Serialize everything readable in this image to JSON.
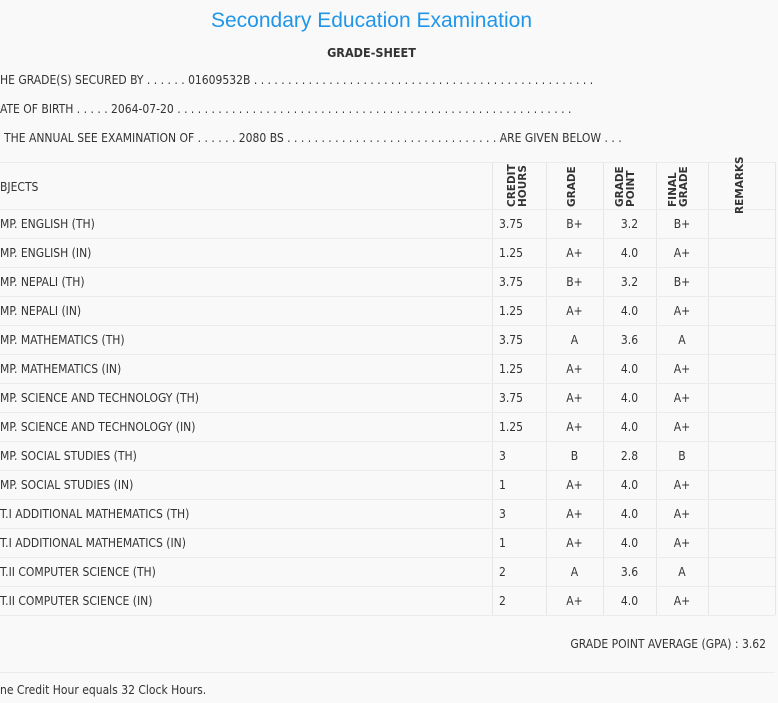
{
  "title": "Secondary Education Examination",
  "subtitle": "GRADE-SHEET",
  "info": {
    "secured_by": "HE GRADE(S) SECURED BY . . . . . . 01609532B . . . . . . . . . . . . . . . . . . . . . . . . . . . . . . . . . . . . . . . . . . . . . . . . . .",
    "dob": "ATE OF BIRTH . . . . . 2064-07-20 . . . . . . . . . . . . . . . . . . . . . . . . . . . . . . . . . . . . . . . . . . . . . . . . . . . . . . . . . .",
    "exam": "THE ANNUAL SEE EXAMINATION OF . . . . . . 2080 BS . . . . . . . . . . . . . . . . . . . . . . . . . . . . . . . ARE GIVEN BELOW . . ."
  },
  "headers": {
    "subjects": "BJECTS",
    "credit": [
      "CREDIT",
      "HOURS"
    ],
    "grade": "GRADE",
    "point": [
      "GRADE",
      "POINT"
    ],
    "final": [
      "FINAL",
      "GRADE"
    ],
    "remarks": "REMARKS"
  },
  "rows": [
    [
      "MP. ENGLISH (TH)",
      "3.75",
      "B+",
      "3.2",
      "B+"
    ],
    [
      "MP. ENGLISH (IN)",
      "1.25",
      "A+",
      "4.0",
      "A+"
    ],
    [
      "MP. NEPALI (TH)",
      "3.75",
      "B+",
      "3.2",
      "B+"
    ],
    [
      "MP. NEPALI (IN)",
      "1.25",
      "A+",
      "4.0",
      "A+"
    ],
    [
      "MP. MATHEMATICS (TH)",
      "3.75",
      "A",
      "3.6",
      "A"
    ],
    [
      "MP. MATHEMATICS (IN)",
      "1.25",
      "A+",
      "4.0",
      "A+"
    ],
    [
      "MP. SCIENCE AND TECHNOLOGY (TH)",
      "3.75",
      "A+",
      "4.0",
      "A+"
    ],
    [
      "MP. SCIENCE AND TECHNOLOGY (IN)",
      "1.25",
      "A+",
      "4.0",
      "A+"
    ],
    [
      "MP. SOCIAL STUDIES (TH)",
      "3",
      "B",
      "2.8",
      "B"
    ],
    [
      "MP. SOCIAL STUDIES (IN)",
      "1",
      "A+",
      "4.0",
      "A+"
    ],
    [
      "T.I ADDITIONAL MATHEMATICS (TH)",
      "3",
      "A+",
      "4.0",
      "A+"
    ],
    [
      "T.I ADDITIONAL MATHEMATICS (IN)",
      "1",
      "A+",
      "4.0",
      "A+"
    ],
    [
      "T.II COMPUTER SCIENCE (TH)",
      "2",
      "A",
      "3.6",
      "A"
    ],
    [
      "T.II COMPUTER SCIENCE (IN)",
      "2",
      "A+",
      "4.0",
      "A+"
    ]
  ],
  "gpa": "GRADE POINT AVERAGE (GPA) : 3.62",
  "footnote": "ne Credit Hour equals 32 Clock Hours."
}
